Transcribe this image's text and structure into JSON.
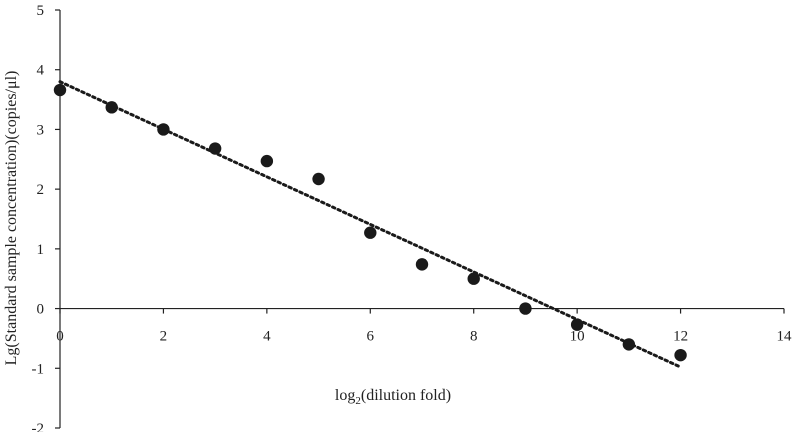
{
  "chart_data": {
    "type": "scatter",
    "title": "",
    "xlabel": "log2(dilution fold)",
    "xlabel_parts": {
      "base": "log",
      "subscript": "2",
      "rest": "(dilution fold)"
    },
    "ylabel": "Lg(Standard sample concentration)(copies/μl)",
    "xlim": [
      0,
      14
    ],
    "ylim": [
      -2,
      5
    ],
    "xticks": [
      "0",
      "2",
      "4",
      "6",
      "8",
      "10",
      "12",
      "14"
    ],
    "yticks": [
      "5",
      "4",
      "3",
      "2",
      "1",
      "0",
      "-1",
      "-2"
    ],
    "grid": false,
    "legend": "none",
    "series": [
      {
        "marker": "circle",
        "color": "#1a1a1a",
        "x": [
          0,
          1,
          2,
          3,
          4,
          5,
          6,
          7,
          8,
          9,
          10,
          11,
          12
        ],
        "y": [
          3.66,
          3.37,
          3.0,
          2.68,
          2.47,
          2.17,
          1.27,
          0.74,
          0.5,
          0.0,
          -0.27,
          -0.6,
          -0.78
        ]
      }
    ],
    "trendline": {
      "style": "dotted",
      "color": "#1a1a1a",
      "x": [
        0,
        12
      ],
      "y": [
        3.8,
        -0.98
      ]
    }
  }
}
